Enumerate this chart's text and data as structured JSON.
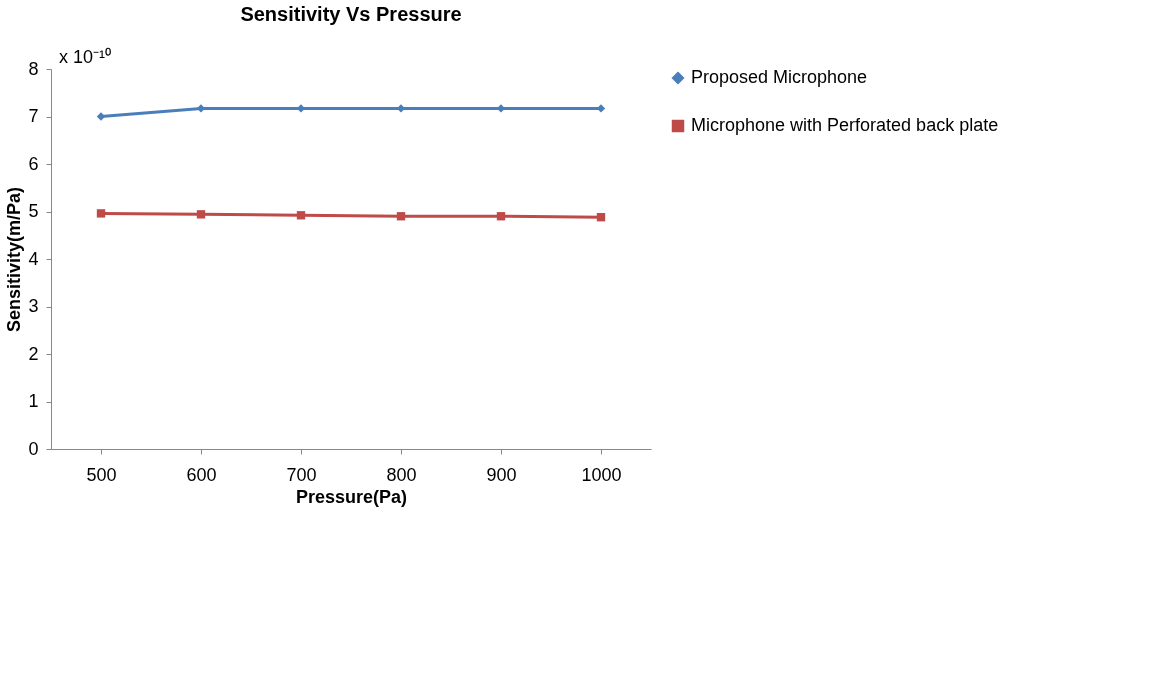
{
  "chart_data": {
    "type": "line",
    "title": "Sensitivity Vs Pressure",
    "xlabel": "Pressure(Pa)",
    "ylabel": "Sensitivity(m/Pa)",
    "categories": [
      "500",
      "600",
      "700",
      "800",
      "900",
      "1000"
    ],
    "series": [
      {
        "name": "Proposed Microphone",
        "color": "#4a7ebb",
        "marker": "diamond",
        "values": [
          7.0,
          7.17,
          7.17,
          7.17,
          7.17,
          7.17
        ]
      },
      {
        "name": "Microphone with Perforated back plate",
        "color": "#be4b48",
        "marker": "square",
        "values": [
          4.96,
          4.94,
          4.92,
          4.9,
          4.9,
          4.88
        ]
      }
    ],
    "ylim": [
      0,
      8
    ],
    "yticks": [
      0,
      1,
      2,
      3,
      4,
      5,
      6,
      7,
      8
    ],
    "annotations": [
      "x 10⁻¹⁰"
    ],
    "grid": false,
    "legend": "right"
  }
}
